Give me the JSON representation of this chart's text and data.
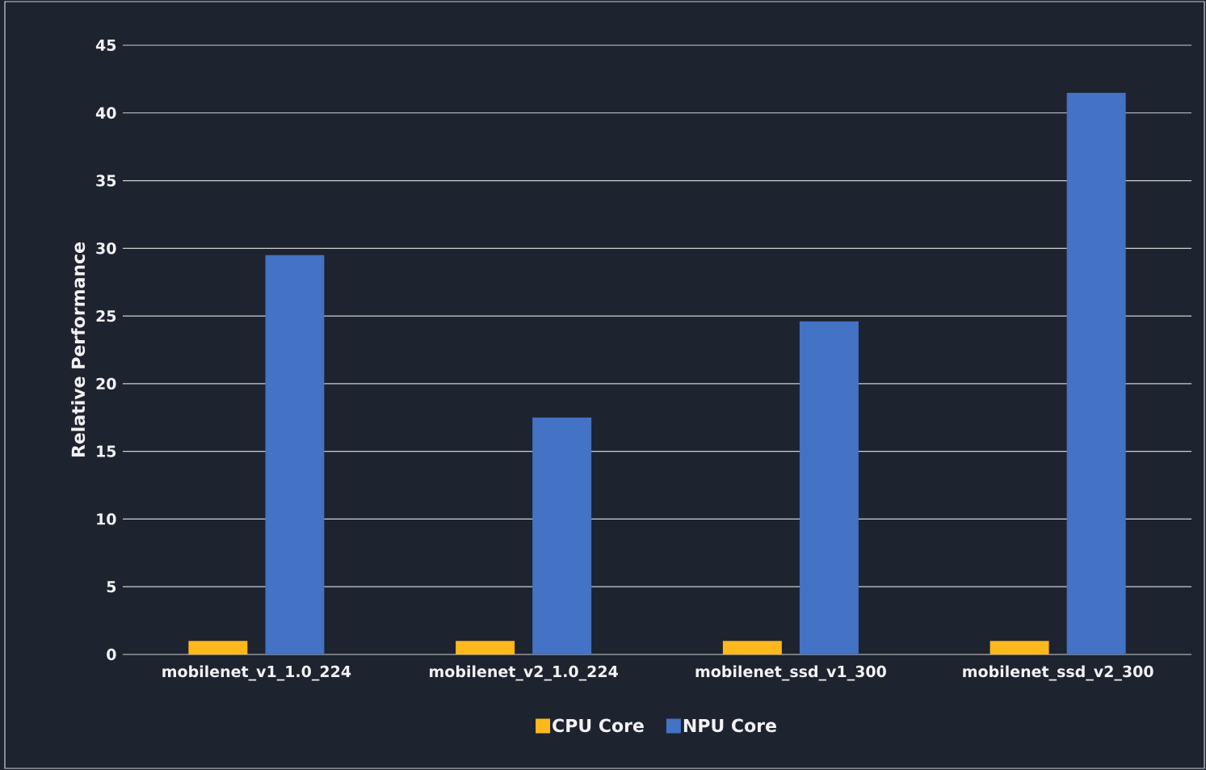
{
  "chart_data": {
    "type": "bar",
    "ylabel": "Relative Performance",
    "categories": [
      "mobilenet_v1_1.0_224",
      "mobilenet_v2_1.0_224",
      "mobilenet_ssd_v1_300",
      "mobilenet_ssd_v2_300"
    ],
    "series": [
      {
        "name": "CPU Core",
        "color": "#ffb81c",
        "values": [
          1,
          1,
          1,
          1
        ]
      },
      {
        "name": "NPU Core",
        "color": "#4472c4",
        "values": [
          29.5,
          17.5,
          24.6,
          41.5
        ]
      }
    ],
    "ylim": [
      0,
      45
    ],
    "yticks": [
      0,
      5,
      10,
      15,
      20,
      25,
      30,
      35,
      40,
      45
    ],
    "grid": "y",
    "legend": "bottom"
  }
}
